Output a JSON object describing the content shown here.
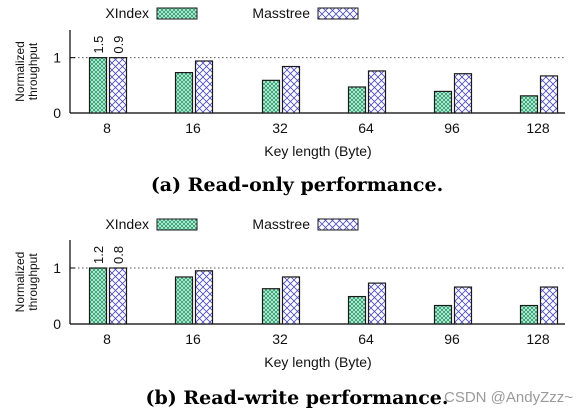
{
  "chart_data": [
    {
      "type": "bar",
      "title": "(a) Read-only performance.",
      "xlabel": "Key length (Byte)",
      "ylabel": "Normalized\nthroughput",
      "categories": [
        "8",
        "16",
        "32",
        "64",
        "96",
        "128"
      ],
      "ylim": [
        0,
        1.5
      ],
      "yticks": [
        "0",
        "1"
      ],
      "reference_line": 1,
      "grid": false,
      "legend": "top",
      "series": [
        {
          "name": "XIndex",
          "values": [
            1.0,
            0.73,
            0.59,
            0.47,
            0.39,
            0.31
          ],
          "color": "#3cb98f"
        },
        {
          "name": "Masstree",
          "values": [
            1.0,
            0.94,
            0.84,
            0.76,
            0.71,
            0.67
          ],
          "color": "#5a5ac8"
        }
      ],
      "annotations": [
        "1.5",
        "0.9"
      ]
    },
    {
      "type": "bar",
      "title": "(b) Read-write performance.",
      "xlabel": "Key length (Byte)",
      "ylabel": "Normalized\nthroughput",
      "categories": [
        "8",
        "16",
        "32",
        "64",
        "96",
        "128"
      ],
      "ylim": [
        0,
        1.5
      ],
      "yticks": [
        "0",
        "1"
      ],
      "reference_line": 1,
      "grid": false,
      "legend": "top",
      "series": [
        {
          "name": "XIndex",
          "values": [
            1.0,
            0.84,
            0.63,
            0.49,
            0.33,
            0.33
          ],
          "color": "#3cb98f"
        },
        {
          "name": "Masstree",
          "values": [
            1.0,
            0.95,
            0.84,
            0.73,
            0.66,
            0.66
          ],
          "color": "#5a5ac8"
        }
      ],
      "annotations": [
        "1.2",
        "0.8"
      ]
    }
  ],
  "watermark": "CSDN @AndyZzz~"
}
